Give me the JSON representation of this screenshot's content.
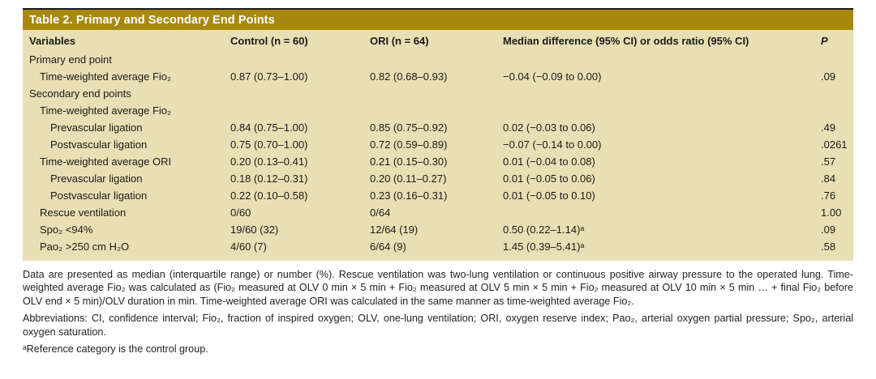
{
  "colors": {
    "title_bar_bg": "#a8880f",
    "table_body_bg": "#e9dfb4",
    "title_text": "#ffffff",
    "text": "#1a1a1a"
  },
  "table": {
    "title": "Table 2. Primary and Secondary End Points",
    "columns": [
      "Variables",
      "Control (n = 60)",
      "ORI (n = 64)",
      "Median difference (95% CI) or odds ratio (95% CI)",
      "P"
    ],
    "rows": [
      {
        "label": "Primary end point",
        "indent": 0,
        "control": "",
        "ori": "",
        "diff": "",
        "p": ""
      },
      {
        "label": "Time-weighted average Fio₂",
        "indent": 1,
        "control": "0.87 (0.73–1.00)",
        "ori": "0.82 (0.68–0.93)",
        "diff": "−0.04 (−0.09 to 0.00)",
        "p": ".09"
      },
      {
        "label": "Secondary end points",
        "indent": 0,
        "control": "",
        "ori": "",
        "diff": "",
        "p": ""
      },
      {
        "label": "Time-weighted average Fio₂",
        "indent": 1,
        "control": "",
        "ori": "",
        "diff": "",
        "p": ""
      },
      {
        "label": "Prevascular ligation",
        "indent": 2,
        "control": "0.84 (0.75–1.00)",
        "ori": "0.85 (0.75–0.92)",
        "diff": "0.02 (−0.03 to 0.06)",
        "p": ".49"
      },
      {
        "label": "Postvascular ligation",
        "indent": 2,
        "control": "0.75 (0.70–1.00)",
        "ori": "0.72 (0.59–0.89)",
        "diff": "−0.07 (−0.14 to 0.00)",
        "p": ".0261"
      },
      {
        "label": "Time-weighted average ORI",
        "indent": 1,
        "control": "0.20 (0.13–0.41)",
        "ori": "0.21 (0.15–0.30)",
        "diff": "0.01 (−0.04 to 0.08)",
        "p": ".57"
      },
      {
        "label": "Prevascular ligation",
        "indent": 2,
        "control": "0.18 (0.12–0.31)",
        "ori": "0.20 (0.11–0.27)",
        "diff": "0.01 (−0.05 to 0.06)",
        "p": ".84"
      },
      {
        "label": "Postvascular ligation",
        "indent": 2,
        "control": "0.22 (0.10–0.58)",
        "ori": "0.23 (0.16–0.31)",
        "diff": "0.01 (−0.05 to 0.10)",
        "p": ".76"
      },
      {
        "label": "Rescue ventilation",
        "indent": 1,
        "control": "0/60",
        "ori": "0/64",
        "diff": "",
        "p": "1.00"
      },
      {
        "label": "Spo₂ <94%",
        "indent": 1,
        "control": "19/60 (32)",
        "ori": "12/64 (19)",
        "diff": "0.50 (0.22–1.14)ᵃ",
        "p": ".09"
      },
      {
        "label": "Pao₂ >250 cm H₂O",
        "indent": 1,
        "control": "4/60 (7)",
        "ori": "6/64 (9)",
        "diff": "1.45 (0.39–5.41)ᵃ",
        "p": ".58"
      }
    ]
  },
  "footnotes": {
    "data_note": "Data are presented as median (interquartile range) or number (%). Rescue ventilation was two-lung ventilation or continuous positive airway pressure to the operated lung. Time-weighted average Fio₂ was calculated as (Fio₂ measured at OLV 0 min × 5 min + Fio₂ measured at OLV 5 min × 5 min + Fio₂ measured at OLV 10 min × 5 min … + final Fio₂ before OLV end × 5 min)/OLV duration in min. Time-weighted average ORI was calculated in the same manner as time-weighted average Fio₂.",
    "abbreviations": "Abbreviations: CI, confidence interval; Fio₂, fraction of inspired oxygen; OLV, one-lung ventilation; ORI, oxygen reserve index; Pao₂, arterial oxygen partial pressure; Spo₂, arterial oxygen saturation.",
    "reference_note": "ᵃReference category is the control group."
  }
}
